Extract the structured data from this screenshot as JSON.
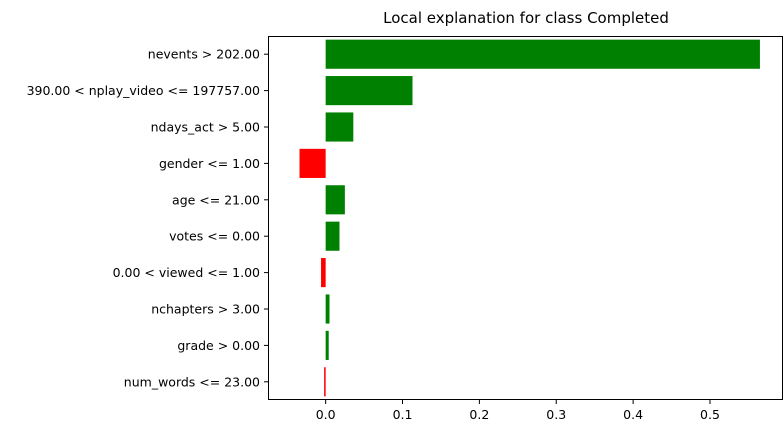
{
  "chart_data": {
    "type": "bar",
    "orientation": "horizontal",
    "title": "Local explanation for class Completed",
    "xlabel": "",
    "ylabel": "",
    "xlim": [
      -0.075,
      0.595
    ],
    "xticks": [
      0.0,
      0.1,
      0.2,
      0.3,
      0.4,
      0.5
    ],
    "xtick_labels": [
      "0.0",
      "0.1",
      "0.2",
      "0.3",
      "0.4",
      "0.5"
    ],
    "grid": false,
    "legend": "none",
    "positive_color": "#008000",
    "negative_color": "#ff0000",
    "categories": [
      "nevents > 202.00",
      "390.00 < nplay_video <= 197757.00",
      "ndays_act > 5.00",
      "gender <= 1.00",
      "age <= 21.00",
      "votes <= 0.00",
      "0.00 < viewed <= 1.00",
      "nchapters > 3.00",
      "grade > 0.00",
      "num_words <= 23.00"
    ],
    "values": [
      0.565,
      0.113,
      0.036,
      -0.034,
      0.025,
      0.018,
      -0.006,
      0.005,
      0.004,
      -0.002
    ]
  }
}
